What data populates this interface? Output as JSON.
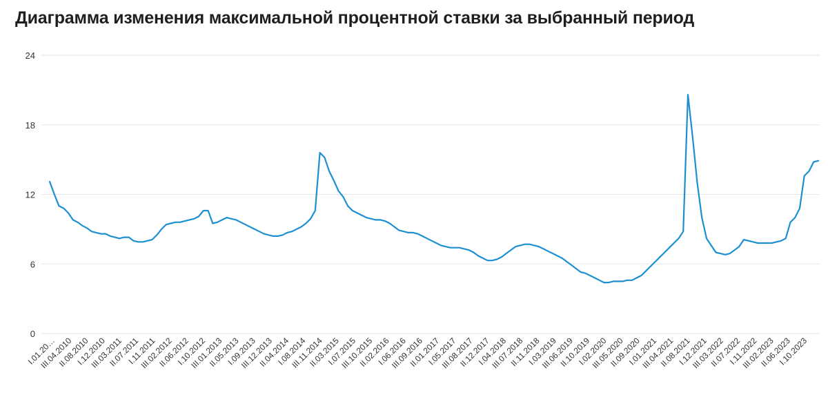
{
  "page": {
    "title": "Диаграмма изменения максимальной процентной ставки за выбранный период"
  },
  "chart_data": {
    "type": "line",
    "title": "Диаграмма изменения максимальной процентной ставки за выбранный период",
    "xlabel": "",
    "ylabel": "",
    "ylim": [
      0,
      24
    ],
    "yticks": [
      "0",
      "6",
      "12",
      "18",
      "24"
    ],
    "grid": true,
    "legend": "none",
    "color": "#1c8fd0",
    "xtick_labels": [
      "I.01.20…",
      "III.04.2010",
      "II.08.2010",
      "I.12.2010",
      "III.03.2011",
      "II.07.2011",
      "I.11.2011",
      "III.02.2012",
      "II.06.2012",
      "I.10.2012",
      "III.01.2013",
      "II.05.2013",
      "I.09.2013",
      "III.12.2013",
      "II.04.2014",
      "I.08.2014",
      "III.11.2014",
      "II.03.2015",
      "I.07.2015",
      "III.10.2015",
      "II.02.2016",
      "I.06.2016",
      "III.09.2016",
      "II.01.2017",
      "I.05.2017",
      "III.08.2017",
      "II.12.2017",
      "I.04.2018",
      "III.07.2018",
      "II.11.2018",
      "I.03.2019",
      "III.06.2019",
      "II.10.2019",
      "I.02.2020",
      "III.05.2020",
      "II.09.2020",
      "I.01.2021",
      "III.04.2021",
      "II.08.2021",
      "I.12.2021",
      "III.03.2022",
      "II.07.2022",
      "I.11.2022",
      "III.02.2023",
      "II.06.2023",
      "I.10.2023"
    ],
    "series": [
      {
        "values": [
          13.1,
          12.0,
          11.0,
          10.8,
          10.4,
          9.8,
          9.6,
          9.3,
          9.1,
          8.8,
          8.7,
          8.6,
          8.6,
          8.4,
          8.3,
          8.2,
          8.3,
          8.3,
          8.0,
          7.9,
          7.9,
          8.0,
          8.1,
          8.5,
          9.0,
          9.4,
          9.5,
          9.6,
          9.6,
          9.7,
          9.8,
          9.9,
          10.1,
          10.6,
          10.6,
          9.5,
          9.6,
          9.8,
          10.0,
          9.9,
          9.8,
          9.6,
          9.4,
          9.2,
          9.0,
          8.8,
          8.6,
          8.5,
          8.4,
          8.4,
          8.5,
          8.7,
          8.8,
          9.0,
          9.2,
          9.5,
          9.9,
          10.6,
          15.6,
          15.2,
          14.0,
          13.2,
          12.3,
          11.8,
          11.0,
          10.6,
          10.4,
          10.2,
          10.0,
          9.9,
          9.8,
          9.8,
          9.7,
          9.5,
          9.2,
          8.9,
          8.8,
          8.7,
          8.7,
          8.6,
          8.4,
          8.2,
          8.0,
          7.8,
          7.6,
          7.5,
          7.4,
          7.4,
          7.4,
          7.3,
          7.2,
          7.0,
          6.7,
          6.5,
          6.3,
          6.3,
          6.4,
          6.6,
          6.9,
          7.2,
          7.5,
          7.6,
          7.7,
          7.7,
          7.6,
          7.5,
          7.3,
          7.1,
          6.9,
          6.7,
          6.5,
          6.2,
          5.9,
          5.6,
          5.3,
          5.2,
          5.0,
          4.8,
          4.6,
          4.4,
          4.4,
          4.5,
          4.5,
          4.5,
          4.6,
          4.6,
          4.8,
          5.0,
          5.4,
          5.8,
          6.2,
          6.6,
          7.0,
          7.4,
          7.8,
          8.2,
          8.8,
          20.6,
          17.0,
          13.0,
          10.0,
          8.2,
          7.6,
          7.0,
          6.9,
          6.8,
          6.9,
          7.2,
          7.5,
          8.1,
          8.0,
          7.9,
          7.8,
          7.8,
          7.8,
          7.8,
          7.9,
          8.0,
          8.2,
          9.6,
          10.0,
          10.8,
          13.6,
          14.0,
          14.8,
          14.9
        ]
      }
    ]
  }
}
